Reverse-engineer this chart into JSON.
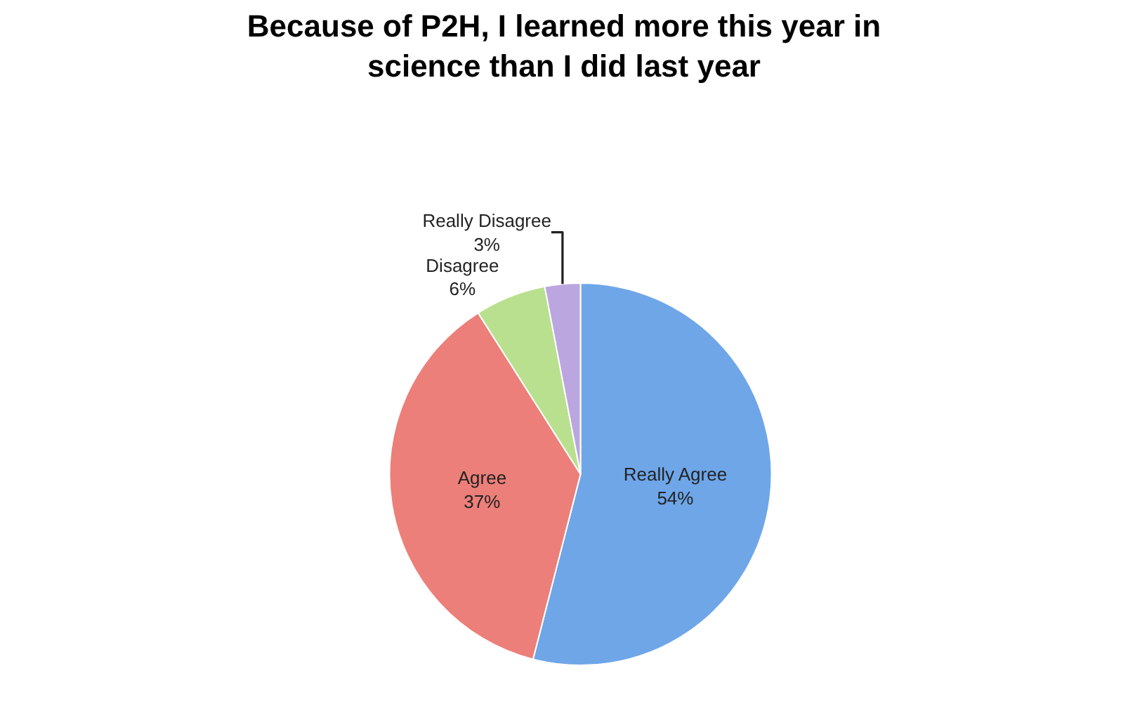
{
  "chart_data": {
    "type": "pie",
    "title": "Because of P2H, I learned more this year in\nscience than I did last year",
    "categories": [
      "Really Agree",
      "Agree",
      "Disagree",
      "Really Disagree"
    ],
    "values": [
      54,
      37,
      6,
      3
    ],
    "value_labels": [
      "54%",
      "37%",
      "6%",
      "3%"
    ],
    "colors": [
      "#6ea6e8",
      "#ec7f79",
      "#b9e08f",
      "#bba6e0"
    ],
    "legend": false
  }
}
